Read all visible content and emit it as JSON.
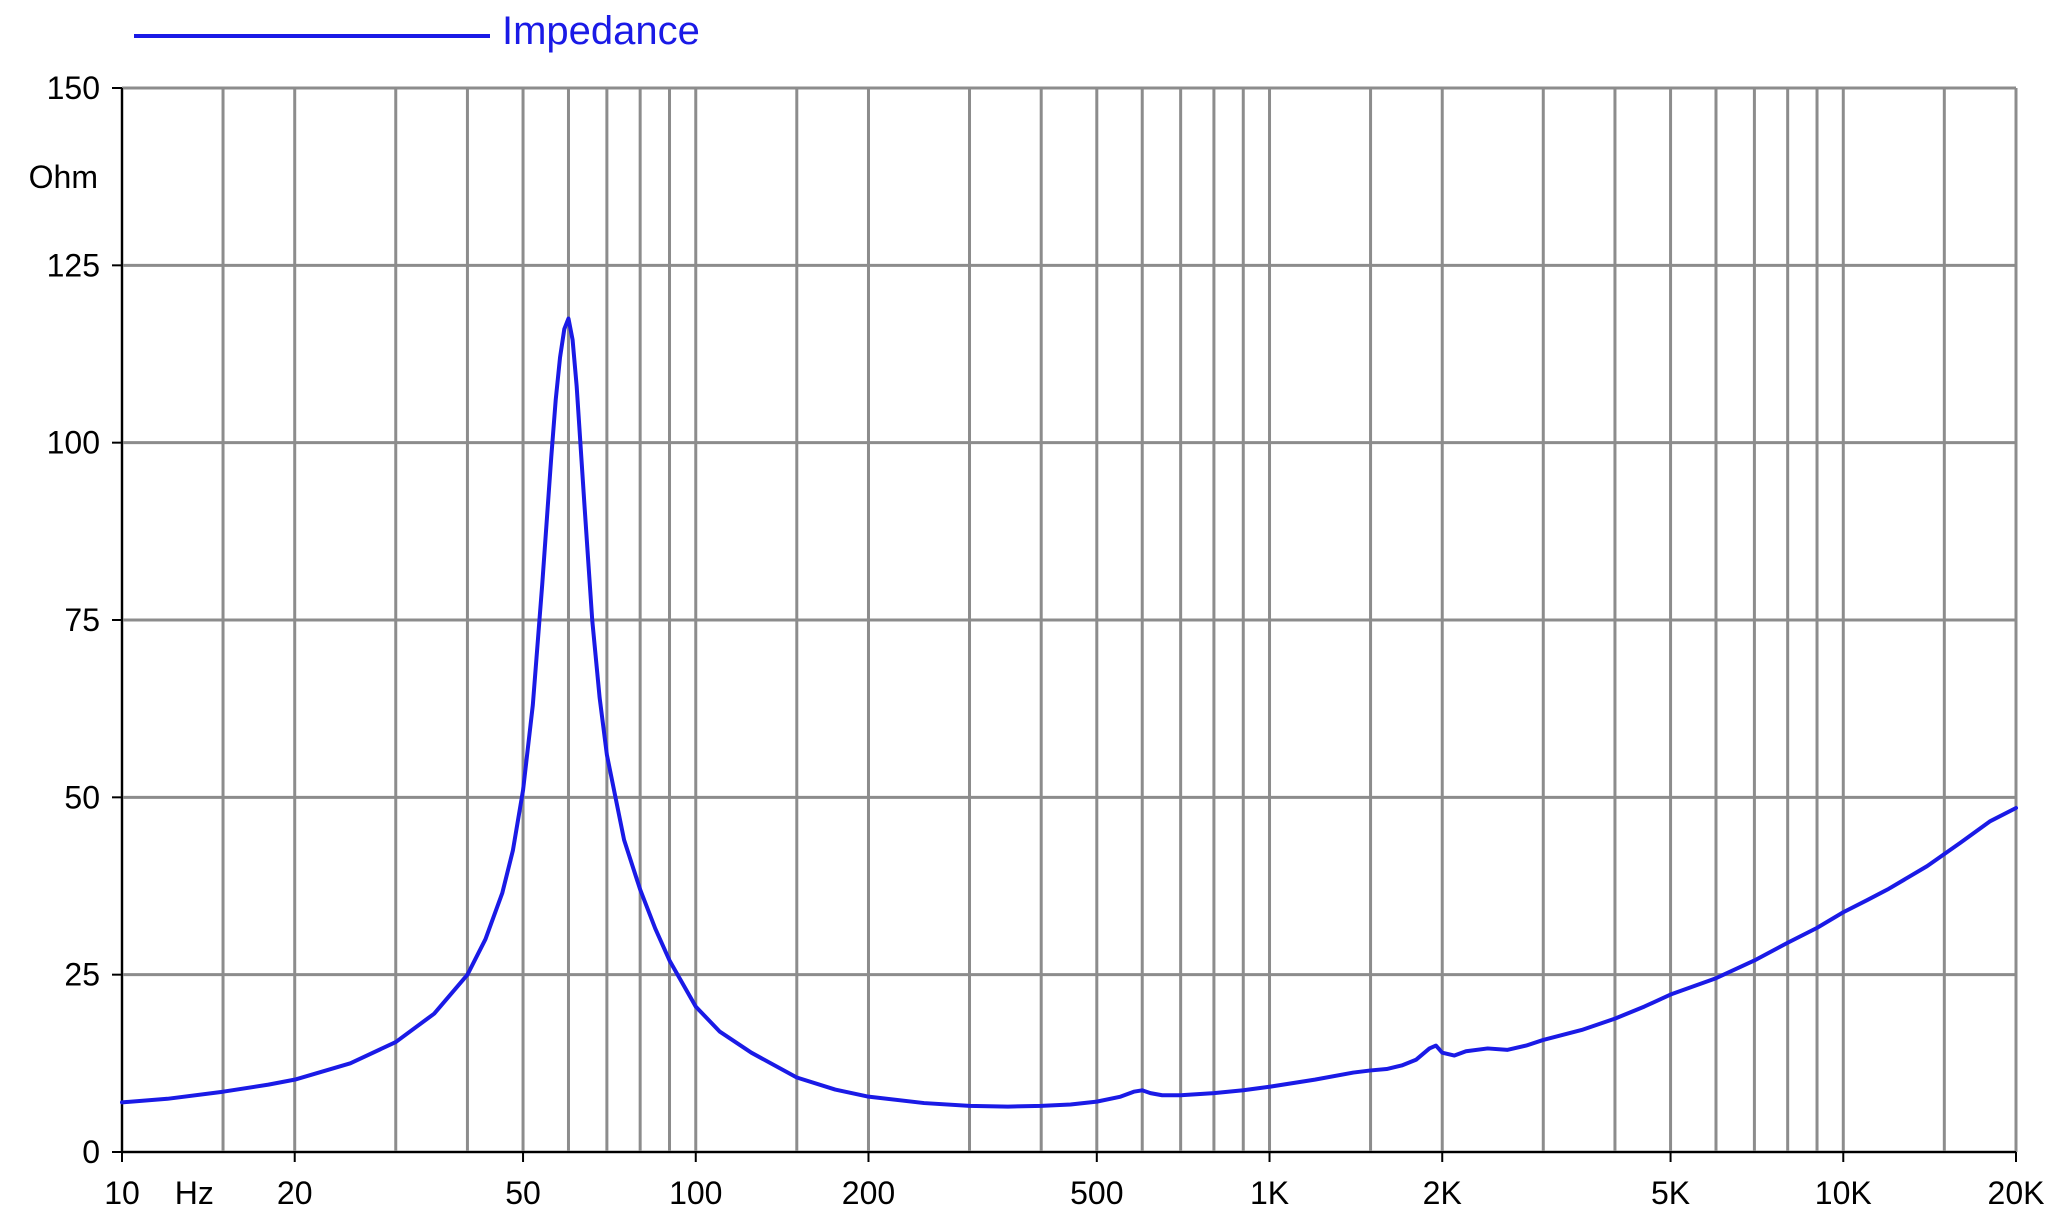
{
  "chart_data": {
    "type": "line",
    "title": "",
    "xlabel": "Hz",
    "ylabel": "Ohm",
    "x_scale": "log",
    "xlim": [
      10,
      20000
    ],
    "ylim": [
      0,
      150
    ],
    "grid": true,
    "legend_placement": "top-left",
    "x_tick_labels": [
      {
        "value": 10,
        "label": "10"
      },
      {
        "value": 20,
        "label": "20"
      },
      {
        "value": 50,
        "label": "50"
      },
      {
        "value": 100,
        "label": "100"
      },
      {
        "value": 200,
        "label": "200"
      },
      {
        "value": 500,
        "label": "500"
      },
      {
        "value": 1000,
        "label": "1K"
      },
      {
        "value": 2000,
        "label": "2K"
      },
      {
        "value": 5000,
        "label": "5K"
      },
      {
        "value": 10000,
        "label": "10K"
      },
      {
        "value": 20000,
        "label": "20K"
      }
    ],
    "x_gridlines": [
      10,
      15,
      20,
      30,
      40,
      50,
      60,
      70,
      80,
      90,
      100,
      150,
      200,
      300,
      400,
      500,
      600,
      700,
      800,
      900,
      1000,
      1500,
      2000,
      3000,
      4000,
      5000,
      6000,
      7000,
      8000,
      9000,
      10000,
      15000,
      20000
    ],
    "y_ticks": [
      0,
      25,
      50,
      75,
      100,
      125,
      150
    ],
    "colors": {
      "series": "#1a1ae6",
      "grid": "#8c8c8c",
      "axis": "#000000"
    },
    "series": [
      {
        "name": "Impedance",
        "x": [
          10,
          12,
          15,
          18,
          20,
          25,
          30,
          35,
          40,
          43,
          46,
          48,
          50,
          52,
          54,
          56,
          57,
          58,
          59,
          60,
          61,
          62,
          64,
          66,
          68,
          70,
          75,
          80,
          85,
          90,
          100,
          110,
          125,
          150,
          175,
          200,
          250,
          300,
          350,
          400,
          450,
          500,
          550,
          580,
          600,
          620,
          650,
          700,
          800,
          900,
          1000,
          1200,
          1400,
          1500,
          1600,
          1700,
          1800,
          1900,
          1950,
          2000,
          2100,
          2200,
          2400,
          2600,
          2800,
          3000,
          3500,
          4000,
          4500,
          5000,
          5500,
          6000,
          7000,
          8000,
          9000,
          10000,
          11000,
          12000,
          14000,
          16000,
          18000,
          20000
        ],
        "y": [
          7,
          7.5,
          8.5,
          9.5,
          10.2,
          12.5,
          15.5,
          19.5,
          25,
          30,
          36.5,
          42.5,
          51,
          63,
          80,
          98,
          106,
          112,
          116,
          117.5,
          114.5,
          108,
          91,
          75,
          64,
          56,
          44,
          37,
          31.5,
          27,
          20.5,
          17,
          14,
          10.5,
          8.8,
          7.8,
          6.9,
          6.5,
          6.4,
          6.5,
          6.7,
          7.1,
          7.8,
          8.5,
          8.7,
          8.3,
          8.0,
          8.0,
          8.3,
          8.7,
          9.2,
          10.2,
          11.2,
          11.5,
          11.7,
          12.2,
          13,
          14.6,
          15,
          14,
          13.6,
          14.2,
          14.6,
          14.4,
          15,
          15.8,
          17.2,
          18.8,
          20.5,
          22.2,
          23.4,
          24.5,
          27,
          29.5,
          31.6,
          33.8,
          35.5,
          37.1,
          40.3,
          43.6,
          46.6,
          48.5
        ]
      }
    ]
  }
}
